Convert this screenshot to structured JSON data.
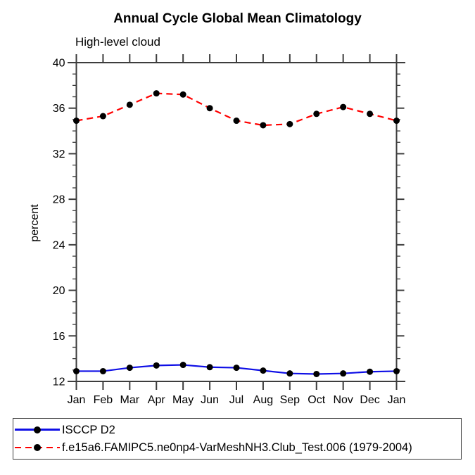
{
  "chart_data": {
    "type": "line",
    "title": "Annual Cycle Global Mean Climatology",
    "subtitle": "High-level cloud",
    "ylabel": "percent",
    "categories": [
      "Jan",
      "Feb",
      "Mar",
      "Apr",
      "May",
      "Jun",
      "Jul",
      "Aug",
      "Sep",
      "Oct",
      "Nov",
      "Dec",
      "Jan"
    ],
    "ylim": [
      12,
      40
    ],
    "ytick_major": [
      12,
      16,
      20,
      24,
      28,
      32,
      36,
      40
    ],
    "ytick_minor_step": 1,
    "grid": false,
    "legend_position": "bottom-left-box",
    "axis_color": "#3d3d3d",
    "text_color": "#000000",
    "series": [
      {
        "name": "ISCCP D2",
        "color": "#0f0fe6",
        "line_style": "solid",
        "marker": "filled-circle",
        "marker_color": "#000000",
        "values": [
          12.9,
          12.9,
          13.2,
          13.4,
          13.45,
          13.25,
          13.2,
          12.95,
          12.7,
          12.65,
          12.7,
          12.85,
          12.9
        ]
      },
      {
        "name": "f.e15a6.FAMIPC5.ne0np4-VarMeshNH3.Club_Test.006 (1979-2004)",
        "color": "#ff0000",
        "line_style": "dashed",
        "marker": "filled-circle",
        "marker_color": "#000000",
        "values": [
          34.9,
          35.3,
          36.3,
          37.3,
          37.2,
          36.0,
          34.9,
          34.5,
          34.6,
          35.5,
          36.1,
          35.5,
          34.9
        ]
      }
    ]
  }
}
